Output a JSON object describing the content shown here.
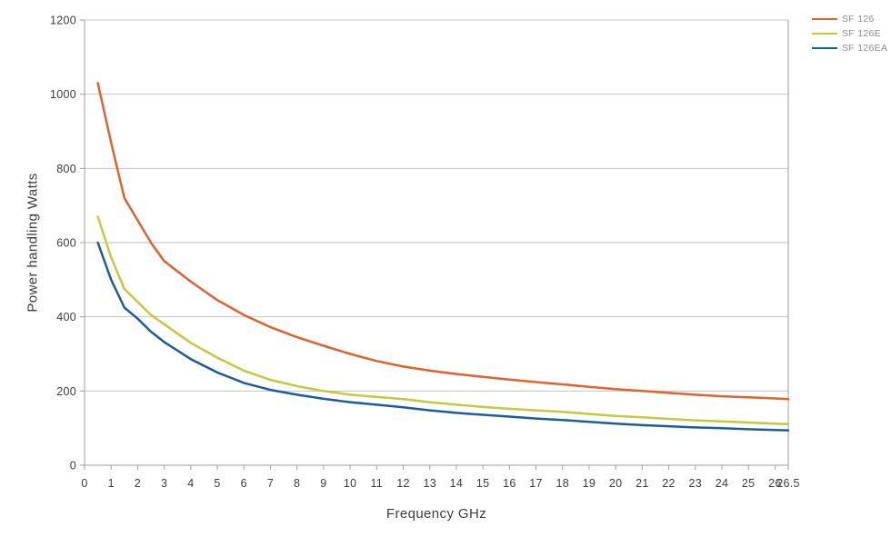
{
  "page": {
    "background": "#ffffff",
    "grid_color": "#c2c2c2",
    "axis_color": "#9e9e9e",
    "tick_color": "#9e9e9e",
    "text_color": "#3c3c3c",
    "legend_text_color": "#8c8c8c"
  },
  "chart_data": {
    "type": "line",
    "title": "",
    "xlabel": "Frequency GHz",
    "ylabel": "Power handling Watts",
    "xlim": [
      0,
      26.5
    ],
    "ylim": [
      0,
      1200
    ],
    "grid": "horizontal",
    "legend_position": "top-right",
    "x_ticks": [
      0,
      1,
      2,
      3,
      4,
      5,
      6,
      7,
      8,
      9,
      10,
      11,
      12,
      13,
      14,
      15,
      16,
      17,
      18,
      19,
      20,
      21,
      22,
      23,
      24,
      25,
      26,
      26.5
    ],
    "x_tick_labels": [
      "0",
      "1",
      "2",
      "3",
      "4",
      "5",
      "6",
      "7",
      "8",
      "9",
      "10",
      "11",
      "12",
      "13",
      "14",
      "15",
      "16",
      "17",
      "18",
      "19",
      "20",
      "21",
      "22",
      "23",
      "24",
      "25",
      "26",
      "26.5"
    ],
    "y_ticks": [
      0,
      200,
      400,
      600,
      800,
      1000,
      1200
    ],
    "y_tick_labels": [
      "0",
      "200",
      "400",
      "600",
      "800",
      "1000",
      "1200"
    ],
    "x": [
      0.5,
      1,
      1.5,
      2,
      2.5,
      3,
      4,
      5,
      6,
      7,
      8,
      9,
      10,
      11,
      12,
      13,
      14,
      15,
      16,
      17,
      18,
      19,
      20,
      21,
      22,
      23,
      24,
      25,
      26,
      26.5
    ],
    "series": [
      {
        "name": "SF 126",
        "color": "#e0622d",
        "values": [
          1030,
          870,
          720,
          660,
          600,
          550,
          495,
          445,
          405,
          372,
          345,
          322,
          300,
          281,
          266,
          255,
          246,
          238,
          231,
          224,
          218,
          211,
          205,
          200,
          195,
          190,
          186,
          183,
          180,
          178
        ]
      },
      {
        "name": "SF 126E",
        "color": "#c6c83e",
        "values": [
          670,
          560,
          475,
          440,
          405,
          380,
          330,
          290,
          255,
          230,
          213,
          200,
          190,
          184,
          178,
          170,
          163,
          157,
          152,
          148,
          144,
          138,
          133,
          129,
          125,
          121,
          118,
          115,
          112,
          111
        ]
      },
      {
        "name": "SF 126EA",
        "color": "#1c5c9e",
        "values": [
          600,
          500,
          425,
          395,
          360,
          332,
          286,
          250,
          222,
          203,
          190,
          179,
          170,
          163,
          156,
          148,
          141,
          136,
          131,
          126,
          122,
          117,
          112,
          108,
          105,
          102,
          100,
          97,
          95,
          94
        ]
      }
    ]
  }
}
